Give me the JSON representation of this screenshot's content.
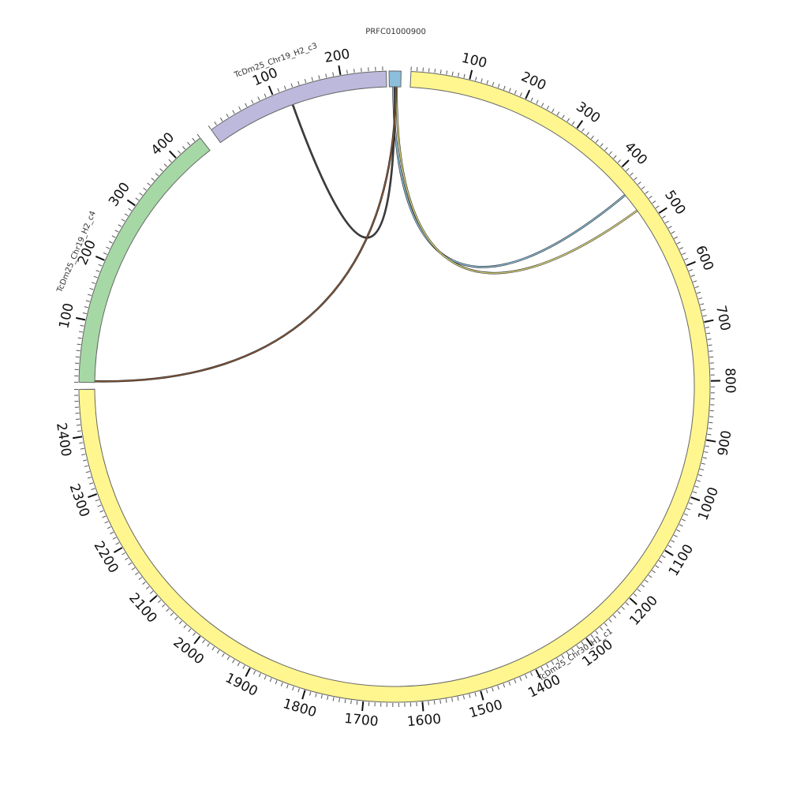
{
  "segments": [
    {
      "id": "c1",
      "name": "TcDm25_Chr30_H1_c1",
      "length": 2480,
      "color": "#fff68f",
      "border": "#666666"
    },
    {
      "id": "c4",
      "name": "TcDm25_Chr19_H2_c4",
      "length": 450,
      "color": "#a6d8a5",
      "border": "#666666"
    },
    {
      "id": "c3",
      "name": "TcDm25_Chr19_H2_c3",
      "length": 265,
      "color": "#bcb9dc",
      "border": "#666666"
    },
    {
      "id": "prfc",
      "name": "PRFC01000900",
      "length": 14,
      "color": "#8bbfdc",
      "border": "#666666"
    }
  ],
  "tick_labels": {
    "c1": [
      "100",
      "200",
      "300",
      "400",
      "500",
      "600",
      "700",
      "800",
      "900",
      "1000",
      "1100",
      "1200",
      "1300",
      "1400",
      "1500",
      "1600",
      "1700",
      "1800",
      "1900",
      "2000",
      "2100",
      "2200",
      "2300",
      "2400"
    ],
    "c4": [
      "100",
      "200",
      "300",
      "400"
    ],
    "c3": [
      "100",
      "200"
    ]
  },
  "links": [
    {
      "from": "prfc",
      "from_pos": 5,
      "to": "c1",
      "to_pos": 440,
      "color": "#8bbfdc"
    },
    {
      "from": "prfc",
      "from_pos": 9,
      "to": "c1",
      "to_pos": 475,
      "color": "#d9d27a"
    },
    {
      "from": "prfc",
      "from_pos": 7,
      "to": "c3",
      "to_pos": 122,
      "color": "#444444"
    },
    {
      "from": "prfc",
      "from_pos": 8,
      "to": "c4",
      "to_pos": 2,
      "color": "#8a5a3a"
    }
  ]
}
